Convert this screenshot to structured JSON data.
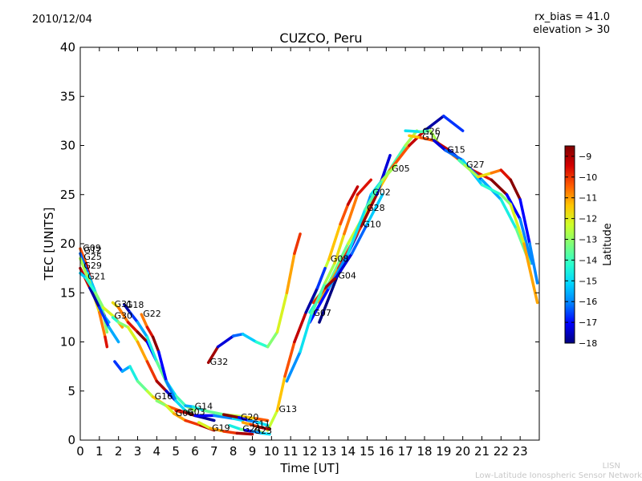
{
  "header": {
    "date": "2010/12/04",
    "title": "CUZCO, Peru",
    "rx_bias": "rx_bias = 41.0",
    "elevation": "elevation > 30"
  },
  "footer": {
    "acronym": "LISN",
    "network": "Low-Latitude Ionospheric Sensor Network"
  },
  "chart_data": {
    "type": "scatter",
    "title": "CUZCO, Peru",
    "xlabel": "Time [UT]",
    "ylabel": "TEC [UNITS]",
    "xlim": [
      0,
      24
    ],
    "ylim": [
      0,
      40
    ],
    "xticks": [
      0,
      1,
      2,
      3,
      4,
      5,
      6,
      7,
      8,
      9,
      10,
      11,
      12,
      13,
      14,
      15,
      16,
      17,
      18,
      19,
      20,
      21,
      22,
      23
    ],
    "yticks": [
      0,
      5,
      10,
      15,
      20,
      25,
      30,
      35,
      40
    ],
    "grid": false,
    "colorbar": {
      "label": "Latitude",
      "range": [
        -18,
        -8.5
      ],
      "ticks": [
        -9,
        -10,
        -11,
        -12,
        -13,
        -14,
        -15,
        -16,
        -17,
        -18
      ],
      "colors": [
        "#00007f",
        "#0000ff",
        "#007fff",
        "#00d4ff",
        "#29ffce",
        "#7dff7a",
        "#ceff29",
        "#ffc400",
        "#ff5a00",
        "#d40000",
        "#7f0000"
      ]
    },
    "series": [
      {
        "name": "G02",
        "label_at": [
          15.2,
          25.2
        ],
        "points": [
          [
            12.5,
            12
          ],
          [
            13.5,
            17
          ],
          [
            14.5,
            21
          ],
          [
            15.2,
            25
          ],
          [
            16,
            27
          ],
          [
            17,
            30
          ],
          [
            17.6,
            31.5
          ]
        ]
      },
      {
        "name": "G05",
        "label_at": [
          16.2,
          27.6
        ],
        "points": [
          [
            12,
            13
          ],
          [
            13,
            16
          ],
          [
            14,
            20
          ],
          [
            15,
            23.5
          ],
          [
            16.2,
            27.5
          ],
          [
            17.2,
            30
          ],
          [
            18,
            31.5
          ],
          [
            19,
            33
          ],
          [
            20,
            31.5
          ]
        ]
      },
      {
        "name": "G10",
        "label_at": [
          14.7,
          21.9
        ],
        "points": [
          [
            12.5,
            14
          ],
          [
            13.5,
            17.5
          ],
          [
            14.7,
            21.8
          ],
          [
            15.5,
            25
          ],
          [
            16.2,
            29
          ]
        ]
      },
      {
        "name": "G28",
        "label_at": [
          14.9,
          23.6
        ],
        "points": [
          [
            12,
            12
          ],
          [
            13,
            15.5
          ],
          [
            14,
            19
          ],
          [
            14.9,
            23.5
          ],
          [
            15.8,
            26.5
          ],
          [
            16.5,
            28
          ]
        ]
      },
      {
        "name": "G08",
        "label_at": [
          13.0,
          18.4
        ],
        "points": [
          [
            12.1,
            14
          ],
          [
            12.6,
            16.5
          ],
          [
            13,
            18.4
          ],
          [
            13.6,
            22
          ],
          [
            14,
            24
          ],
          [
            14.5,
            25.8
          ]
        ]
      },
      {
        "name": "G04",
        "label_at": [
          13.4,
          16.7
        ],
        "points": [
          [
            12.2,
            14
          ],
          [
            12.8,
            15.5
          ],
          [
            13.4,
            16.6
          ],
          [
            14.2,
            19
          ],
          [
            15,
            22
          ],
          [
            15.8,
            25
          ]
        ]
      },
      {
        "name": "G07",
        "label_at": [
          12.1,
          12.9
        ],
        "points": [
          [
            10.8,
            6
          ],
          [
            11.5,
            9
          ],
          [
            12.1,
            12.9
          ],
          [
            12.8,
            16
          ],
          [
            13.3,
            18
          ],
          [
            13.8,
            21
          ],
          [
            14.5,
            25
          ],
          [
            15.2,
            26.5
          ]
        ]
      },
      {
        "name": "G13",
        "label_at": [
          10.3,
          3.1
        ],
        "points": [
          [
            9.8,
            1
          ],
          [
            10.3,
            3
          ],
          [
            10.7,
            6.5
          ],
          [
            11.2,
            10
          ],
          [
            11.8,
            13
          ],
          [
            12.4,
            15.5
          ],
          [
            12.8,
            17.5
          ]
        ]
      },
      {
        "name": "G32",
        "label_at": [
          6.7,
          7.9
        ],
        "points": [
          [
            6.7,
            7.9
          ],
          [
            7.2,
            9.5
          ],
          [
            8,
            10.6
          ],
          [
            8.5,
            10.8
          ],
          [
            9.2,
            10
          ],
          [
            9.8,
            9.5
          ],
          [
            10.3,
            11
          ],
          [
            10.8,
            15
          ],
          [
            11.2,
            19
          ],
          [
            11.5,
            21
          ]
        ]
      },
      {
        "name": "G26",
        "label_at": [
          17.8,
          31.4
        ],
        "points": [
          [
            17,
            31.5
          ],
          [
            17.8,
            31.4
          ],
          [
            18.3,
            31.5
          ],
          [
            18.8,
            30
          ],
          [
            19.5,
            29
          ],
          [
            20.5,
            27.5
          ],
          [
            21.5,
            26.5
          ],
          [
            22.3,
            25
          ],
          [
            23,
            22.5
          ],
          [
            23.6,
            18
          ]
        ]
      },
      {
        "name": "G17",
        "label_at": [
          17.8,
          30.8
        ],
        "points": [
          [
            17.2,
            31
          ],
          [
            17.8,
            30.8
          ],
          [
            18.5,
            30.5
          ],
          [
            19.3,
            29.5
          ],
          [
            20.2,
            28
          ],
          [
            21,
            26.5
          ],
          [
            22,
            24.5
          ],
          [
            22.8,
            21.5
          ],
          [
            23.5,
            18
          ]
        ]
      },
      {
        "name": "G15",
        "label_at": [
          19.1,
          29.5
        ],
        "points": [
          [
            18.5,
            30.5
          ],
          [
            19.1,
            29.5
          ],
          [
            20,
            28.5
          ],
          [
            21,
            26
          ],
          [
            22,
            25
          ],
          [
            22.5,
            24
          ],
          [
            23.2,
            20
          ],
          [
            23.9,
            14
          ]
        ]
      },
      {
        "name": "G27",
        "label_at": [
          20.1,
          28.0
        ],
        "points": [
          [
            19.8,
            28.5
          ],
          [
            20.1,
            28
          ],
          [
            20.8,
            26.8
          ],
          [
            21.5,
            27.2
          ],
          [
            22,
            27.5
          ],
          [
            22.5,
            26.5
          ],
          [
            23,
            24.5
          ],
          [
            23.5,
            20
          ],
          [
            23.9,
            16
          ]
        ]
      },
      {
        "name": "G09",
        "label_at": [
          0.05,
          19.5
        ],
        "points": [
          [
            0,
            19.5
          ],
          [
            0.3,
            18
          ],
          [
            0.6,
            16
          ],
          [
            1,
            14
          ],
          [
            1.3,
            12.5
          ],
          [
            1.5,
            12
          ]
        ]
      },
      {
        "name": "G12",
        "label_at": [
          0.1,
          19.3
        ],
        "points": [
          [
            0,
            19
          ],
          [
            0.4,
            17
          ],
          [
            0.8,
            15
          ],
          [
            1.2,
            13
          ],
          [
            1.4,
            11
          ]
        ]
      },
      {
        "name": "G25",
        "label_at": [
          0.1,
          18.6
        ],
        "points": [
          [
            0,
            18.5
          ],
          [
            0.5,
            16
          ],
          [
            1,
            13
          ],
          [
            1.3,
            10.5
          ],
          [
            1.4,
            9.5
          ]
        ]
      },
      {
        "name": "G29",
        "label_at": [
          0.1,
          17.7
        ],
        "points": [
          [
            0,
            17.5
          ],
          [
            0.5,
            15.5
          ],
          [
            1,
            13.5
          ],
          [
            1.5,
            11.5
          ],
          [
            2,
            10
          ]
        ]
      },
      {
        "name": "G21",
        "label_at": [
          0.3,
          16.6
        ],
        "points": [
          [
            0,
            17
          ],
          [
            0.3,
            16.5
          ],
          [
            0.8,
            15
          ],
          [
            1.2,
            13.5
          ],
          [
            1.8,
            12.5
          ],
          [
            2.2,
            11.5
          ]
        ]
      },
      {
        "name": "G31",
        "label_at": [
          1.7,
          13.8
        ],
        "points": [
          [
            1.7,
            14
          ],
          [
            2,
            13.5
          ],
          [
            2.5,
            12
          ],
          [
            3,
            11
          ],
          [
            3.5,
            10
          ],
          [
            4,
            8
          ],
          [
            4.5,
            6
          ],
          [
            5,
            4.5
          ],
          [
            5.5,
            3.5
          ],
          [
            6,
            3
          ]
        ]
      },
      {
        "name": "G18",
        "label_at": [
          2.3,
          13.7
        ],
        "points": [
          [
            2.3,
            13.8
          ],
          [
            2.6,
            13
          ],
          [
            3,
            12
          ],
          [
            3.5,
            10.5
          ],
          [
            4,
            8
          ],
          [
            4.6,
            5.5
          ]
        ]
      },
      {
        "name": "G30",
        "label_at": [
          1.7,
          12.6
        ],
        "points": [
          [
            1.7,
            12.5
          ],
          [
            2,
            12
          ],
          [
            2.5,
            11.5
          ],
          [
            3,
            10
          ],
          [
            3.5,
            8
          ],
          [
            4,
            6
          ],
          [
            4.5,
            5
          ],
          [
            5,
            4
          ]
        ]
      },
      {
        "name": "G22",
        "label_at": [
          3.2,
          12.8
        ],
        "points": [
          [
            3.2,
            12.8
          ],
          [
            3.5,
            11.5
          ],
          [
            3.8,
            10.5
          ],
          [
            4.1,
            9
          ],
          [
            4.5,
            6
          ],
          [
            5,
            4
          ],
          [
            5.5,
            3
          ],
          [
            6,
            2.5
          ]
        ]
      },
      {
        "name": "G16",
        "label_at": [
          3.8,
          4.4
        ],
        "points": [
          [
            1.8,
            8
          ],
          [
            2.2,
            7
          ],
          [
            2.6,
            7.5
          ],
          [
            3,
            6
          ],
          [
            3.5,
            5
          ],
          [
            3.8,
            4.4
          ],
          [
            4.5,
            3.5
          ],
          [
            5.2,
            3
          ],
          [
            6,
            2.5
          ],
          [
            7,
            2
          ]
        ]
      },
      {
        "name": "G06",
        "label_at": [
          4.9,
          2.7
        ],
        "points": [
          [
            4,
            4
          ],
          [
            4.5,
            3.5
          ],
          [
            4.9,
            2.7
          ],
          [
            5.5,
            2
          ],
          [
            6.3,
            1.5
          ],
          [
            7,
            1
          ]
        ]
      },
      {
        "name": "G03",
        "label_at": [
          5.5,
          2.8
        ],
        "points": [
          [
            5,
            3
          ],
          [
            5.5,
            2.8
          ],
          [
            6,
            2.5
          ],
          [
            7,
            2.5
          ],
          [
            8,
            2.2
          ],
          [
            8.5,
            2
          ]
        ]
      },
      {
        "name": "G14",
        "label_at": [
          5.9,
          3.4
        ],
        "points": [
          [
            5.5,
            3.5
          ],
          [
            5.9,
            3.4
          ],
          [
            6.5,
            3
          ],
          [
            7.5,
            2.6
          ],
          [
            8.5,
            2.4
          ],
          [
            9.2,
            2.2
          ],
          [
            9.8,
            2
          ]
        ]
      },
      {
        "name": "G19",
        "label_at": [
          6.8,
          1.2
        ],
        "points": [
          [
            6.2,
            1.8
          ],
          [
            6.8,
            1.2
          ],
          [
            7.5,
            0.9
          ],
          [
            8.2,
            0.7
          ],
          [
            9,
            0.6
          ]
        ]
      },
      {
        "name": "G20",
        "label_at": [
          8.3,
          2.3
        ],
        "points": [
          [
            7.5,
            2.6
          ],
          [
            8.3,
            2.3
          ],
          [
            8.8,
            2
          ],
          [
            9.3,
            1.8
          ],
          [
            9.8,
            1.5
          ]
        ]
      },
      {
        "name": "G24",
        "label_at": [
          8.4,
          1.1
        ],
        "points": [
          [
            7.8,
            1.5
          ],
          [
            8.4,
            1.1
          ],
          [
            9,
            0.9
          ],
          [
            9.5,
            0.8
          ]
        ]
      },
      {
        "name": "G11",
        "label_at": [
          8.9,
          1.6
        ],
        "points": [
          [
            8.5,
            1.8
          ],
          [
            8.9,
            1.6
          ],
          [
            9.4,
            1.3
          ],
          [
            9.9,
            1.1
          ]
        ]
      },
      {
        "name": "G23",
        "label_at": [
          9.0,
          0.9
        ],
        "points": [
          [
            8.6,
            1
          ],
          [
            9,
            0.9
          ],
          [
            9.5,
            0.7
          ],
          [
            9.9,
            0.6
          ]
        ]
      }
    ]
  }
}
